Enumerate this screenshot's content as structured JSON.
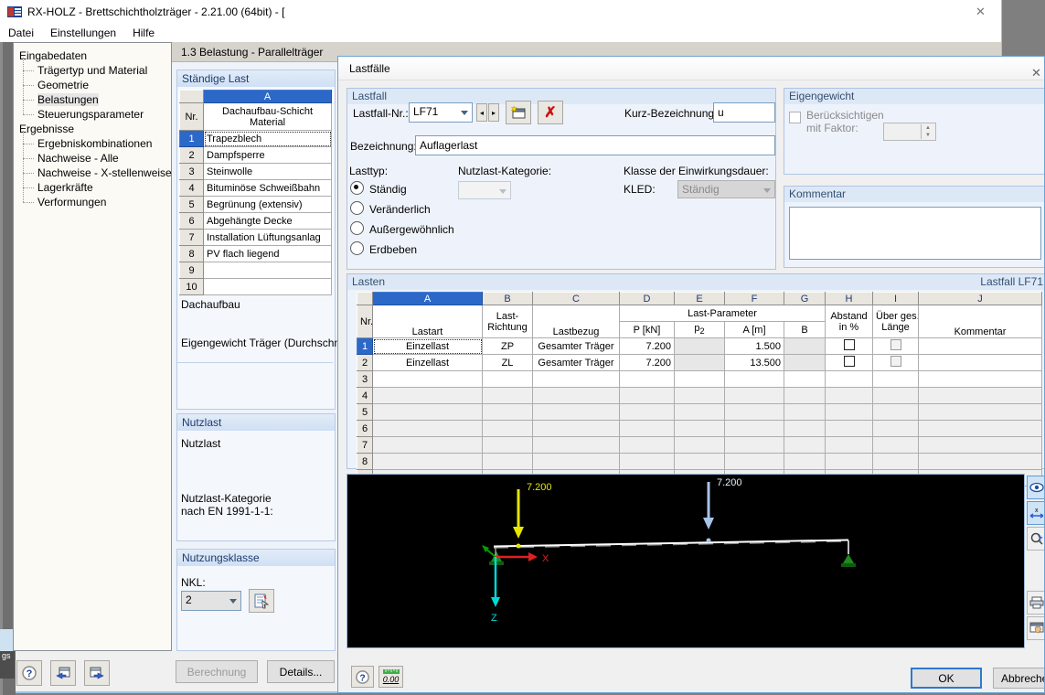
{
  "window": {
    "title": "RX-HOLZ - Brettschichtholzträger - 2.21.00 (64bit) - [",
    "close_glyph": "✕",
    "menu": [
      "Datei",
      "Einstellungen",
      "Hilfe"
    ]
  },
  "nav": {
    "selected": "Belastungen",
    "roots": [
      {
        "label": "Eingabedaten",
        "children": [
          "Trägertyp und Material",
          "Geometrie",
          "Belastungen",
          "Steuerungsparameter"
        ]
      },
      {
        "label": "Ergebnisse",
        "children": [
          "Ergebniskombinationen",
          "Nachweise - Alle",
          "Nachweise - X-stellenweise",
          "Lagerkräfte",
          "Verformungen"
        ]
      }
    ]
  },
  "belastung_panel": {
    "header": "1.3 Belastung  -  Parallelträger",
    "staendige_last": {
      "section_title": "Ständige Last",
      "col_letter": "A",
      "nr_label": "Nr.",
      "col_header_line1": "Dachaufbau-Schicht",
      "col_header_line2": "Material",
      "rows": [
        "Trapezblech",
        "Dampfsperre",
        "Steinwolle",
        "Bituminöse Schweißbahn",
        "Begrünung (extensiv)",
        "Abgehängte Decke",
        "Installation Lüftungsanlag",
        "PV flach liegend",
        "",
        ""
      ],
      "footer_label1": "Dachaufbau",
      "footer_label2": "Eigengewicht Träger (Durchschnitt)"
    },
    "nutzlast": {
      "section_title": "Nutzlast",
      "label": "Nutzlast",
      "category_line1": "Nutzlast-Kategorie",
      "category_line2": "nach EN 1991-1-1:"
    },
    "nutzungsklasse": {
      "section_title": "Nutzungsklasse",
      "nkl_label": "NKL:",
      "nkl_value": "2"
    },
    "buttons": {
      "berechnung": "Berechnung",
      "details": "Details..."
    }
  },
  "dialog": {
    "title": "Lastfälle",
    "close_glyph": "✕",
    "lastfall": {
      "group_title": "Lastfall",
      "nr_label": "Lastfall-Nr.:",
      "nr_value": "LF71",
      "prev_glyph": "◂",
      "next_glyph": "▸",
      "delete_glyph": "✗",
      "kurz_label": "Kurz-Bezeichnung:",
      "kurz_value": "u",
      "bez_label": "Bezeichnung:",
      "bez_value": "Auflagerlast",
      "lasttyp_label": "Lasttyp:",
      "radios": [
        "Ständig",
        "Veränderlich",
        "Außergewöhnlich",
        "Erdbeben"
      ],
      "selected_radio": "Ständig",
      "kategorie_label": "Nutzlast-Kategorie:",
      "kled_group_label": "Klasse der Einwirkungsdauer:",
      "kled_label": "KLED:",
      "kled_value": "Ständig"
    },
    "eigengewicht": {
      "group_title": "Eigengewicht",
      "checkbox_line1": "Berücksichtigen",
      "checkbox_line2": "mit Faktor:"
    },
    "kommentar": {
      "group_title": "Kommentar",
      "value": ""
    },
    "lasten": {
      "group_title": "Lasten",
      "status": "Lastfall LF71",
      "letters": [
        "A",
        "B",
        "C",
        "D",
        "E",
        "F",
        "G",
        "H",
        "I",
        "J"
      ],
      "nr_label": "Nr.",
      "headers": {
        "a": "Lastart",
        "b1": "Last-",
        "b2": "Richtung",
        "c": "Lastbezug",
        "param": "Last-Parameter",
        "d": "P [kN]",
        "e_base": "p",
        "e_sub": "2",
        "f": "A [m]",
        "g": "B",
        "h1": "Abstand",
        "h2": "in %",
        "i1": "Über ges.",
        "i2": "Länge",
        "j": "Kommentar"
      },
      "rows": [
        {
          "nr": "1",
          "lastart": "Einzellast",
          "richtung": "ZP",
          "bezug": "Gesamter Träger",
          "p": "7.200",
          "p2": "",
          "a": "1.500",
          "b": "",
          "kommentar": ""
        },
        {
          "nr": "2",
          "lastart": "Einzellast",
          "richtung": "ZL",
          "bezug": "Gesamter Träger",
          "p": "7.200",
          "p2": "",
          "a": "13.500",
          "b": "",
          "kommentar": ""
        }
      ],
      "empty_row_numbers": [
        "3",
        "4",
        "5",
        "6",
        "7",
        "8"
      ]
    },
    "graphic": {
      "load1_label": "7.200",
      "load2_label": "7.200",
      "axis_x_label": "X",
      "axis_z_label": "Z",
      "load1_color": "#e6e600",
      "load2_color": "#a8c4e8",
      "axis_x_color": "#e02020",
      "axis_z_color": "#00d8d8",
      "support_color": "#1d8a1d",
      "beam_color": "#ffffff"
    },
    "buttons": {
      "ok": "OK",
      "cancel": "Abbrechen"
    },
    "zero_icon_label": "0.00"
  }
}
